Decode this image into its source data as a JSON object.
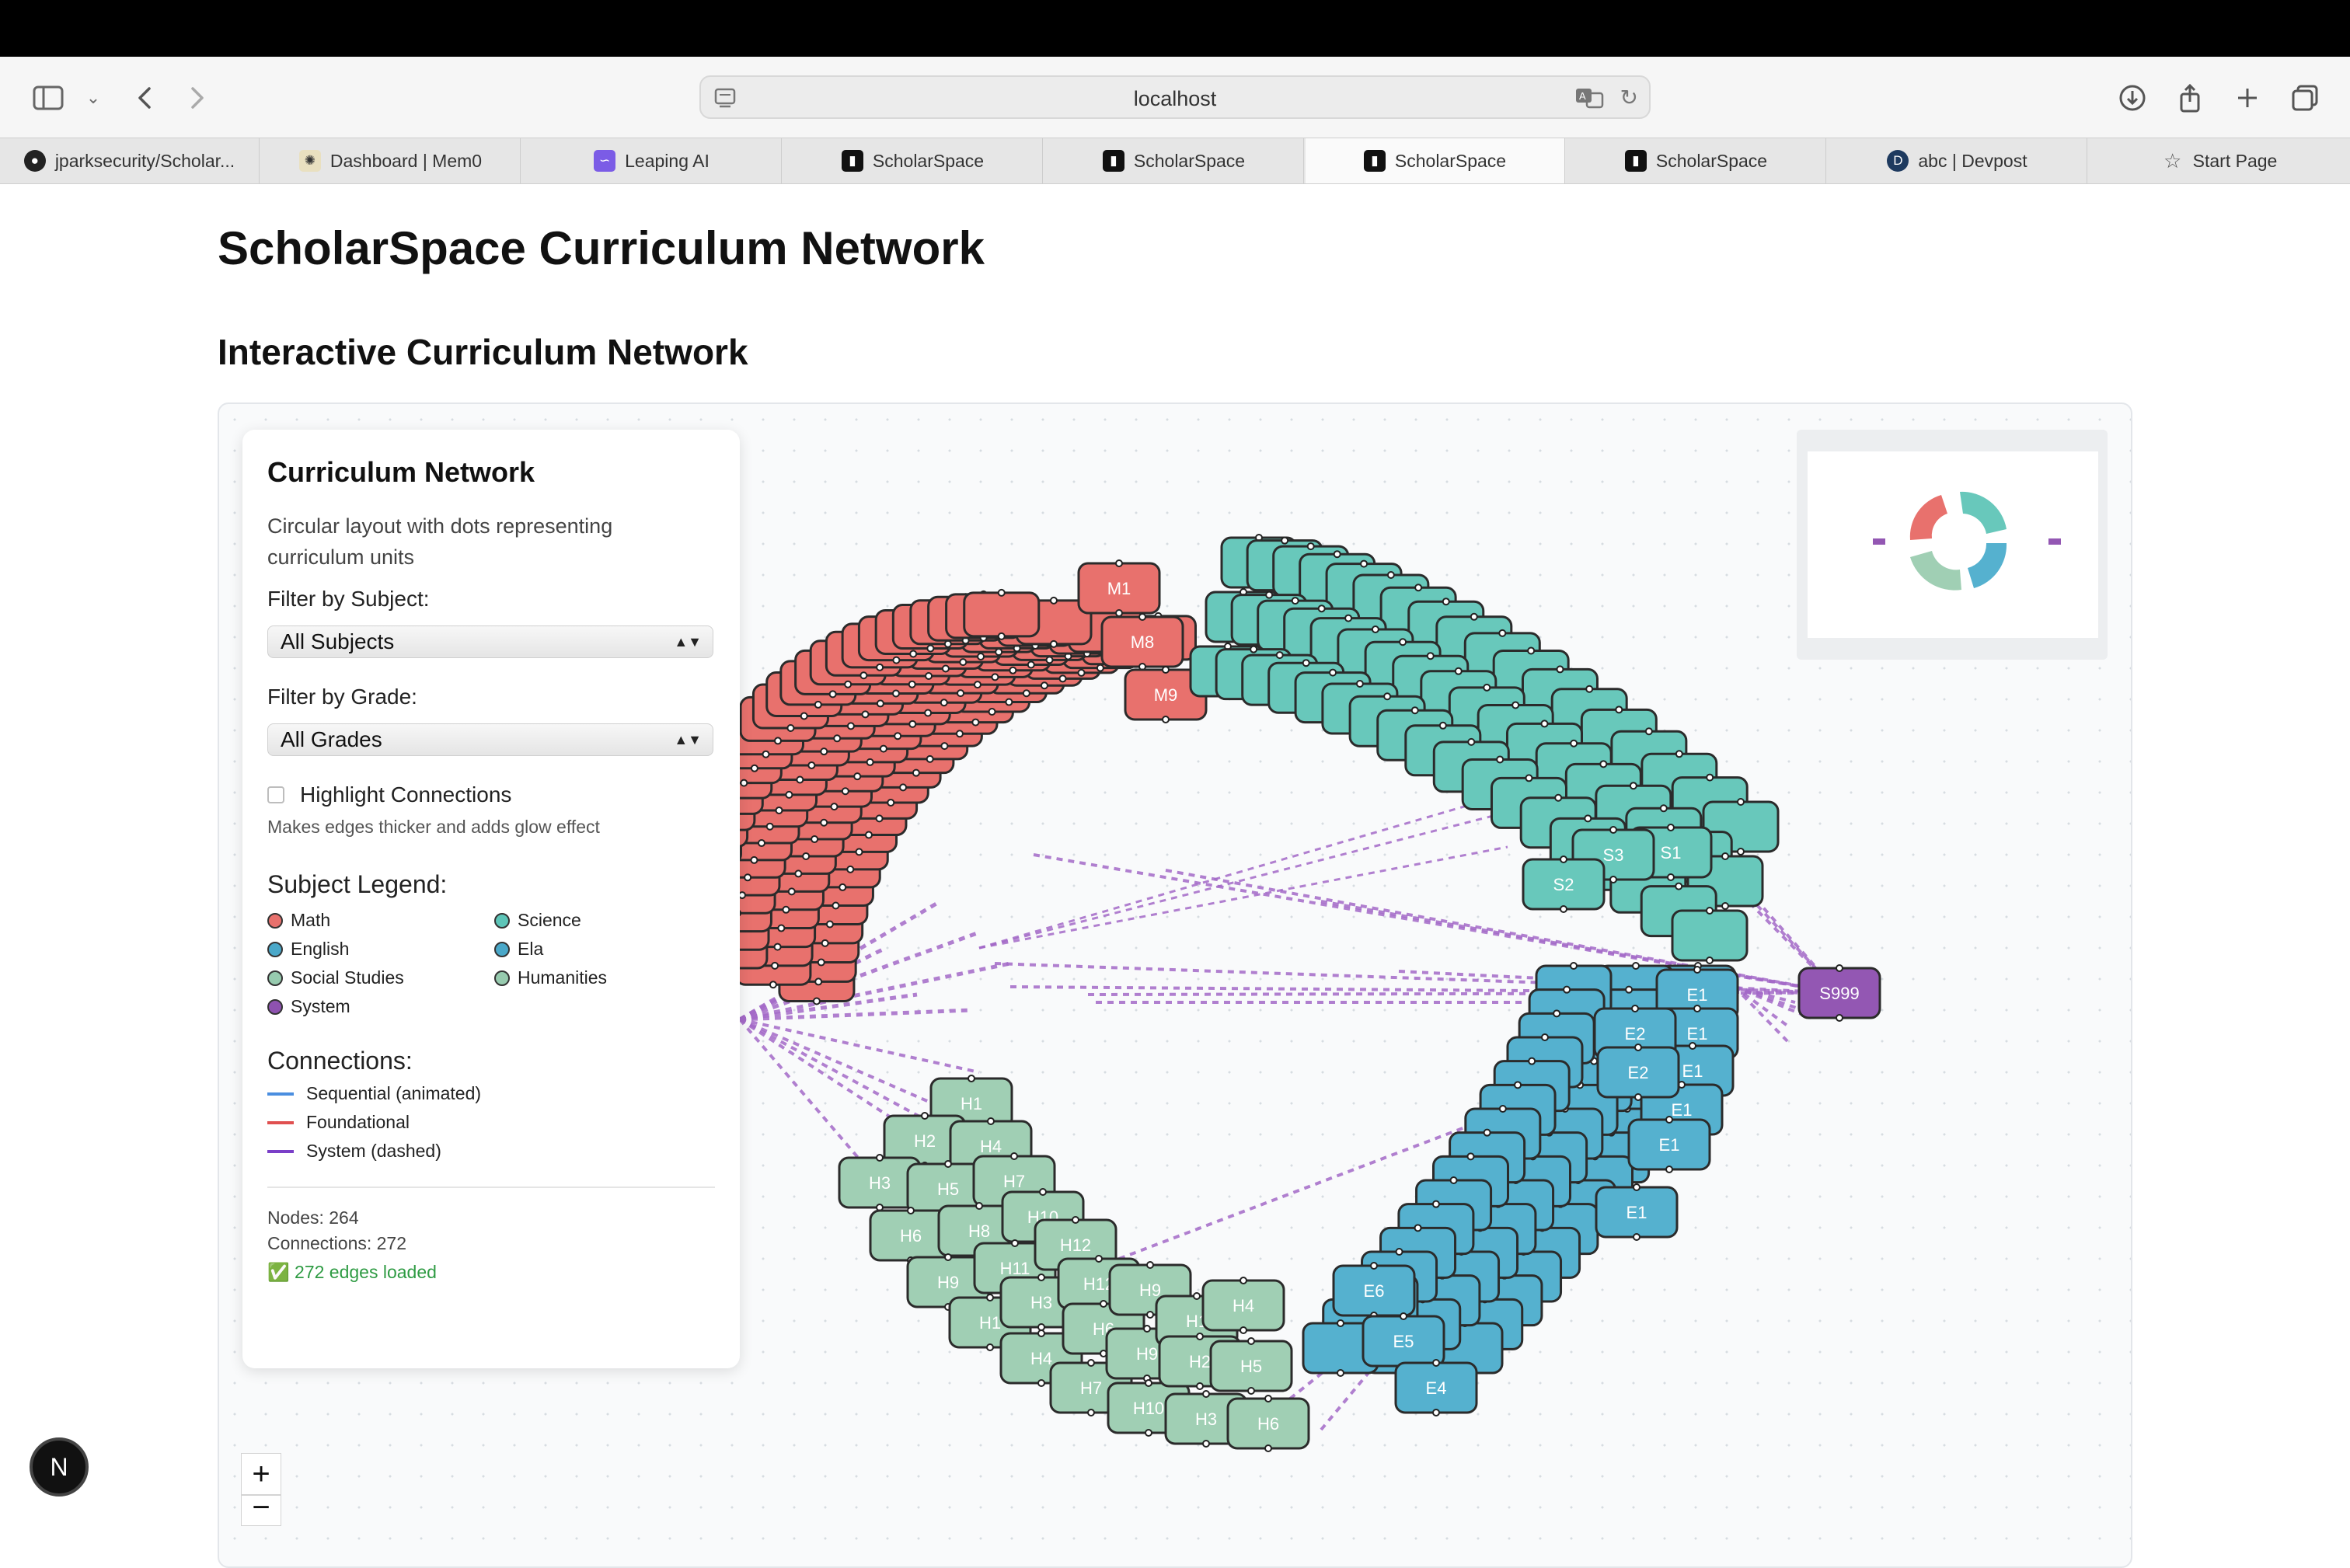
{
  "browser": {
    "url": "localhost",
    "tabs": [
      {
        "label": "jparksecurity/Scholar...",
        "icon": "github-icon"
      },
      {
        "label": "Dashboard | Mem0",
        "icon": "mem0-icon"
      },
      {
        "label": "Leaping AI",
        "icon": "leaping-icon"
      },
      {
        "label": "ScholarSpace",
        "icon": "scholarspace-icon"
      },
      {
        "label": "ScholarSpace",
        "icon": "scholarspace-icon"
      },
      {
        "label": "ScholarSpace",
        "icon": "scholarspace-icon"
      },
      {
        "label": "ScholarSpace",
        "icon": "scholarspace-icon"
      },
      {
        "label": "abc | Devpost",
        "icon": "devpost-icon"
      },
      {
        "label": "Start Page",
        "icon": "star-icon"
      }
    ],
    "active_tab": 5
  },
  "page": {
    "title": "ScholarSpace Curriculum Network",
    "subtitle": "Interactive Curriculum Network"
  },
  "panel": {
    "title": "Curriculum Network",
    "description": "Circular layout with dots representing curriculum units",
    "subject_filter_label": "Filter by Subject:",
    "subject_filter_value": "All Subjects",
    "grade_filter_label": "Filter by Grade:",
    "grade_filter_value": "All Grades",
    "highlight_label": "Highlight Connections",
    "highlight_hint": "Makes edges thicker and adds glow effect",
    "legend_title": "Subject Legend:",
    "legend": [
      {
        "label": "Math",
        "color": "#e8716d"
      },
      {
        "label": "Science",
        "color": "#5dc5b8"
      },
      {
        "label": "English",
        "color": "#4aa8c9"
      },
      {
        "label": "Ela",
        "color": "#4aa8c9"
      },
      {
        "label": "Social Studies",
        "color": "#97cbaf"
      },
      {
        "label": "Humanities",
        "color": "#97cbaf"
      },
      {
        "label": "System",
        "color": "#8e52b0"
      }
    ],
    "connections_title": "Connections:",
    "connections": [
      {
        "label": "Sequential (animated)",
        "color": "#4a8ee0"
      },
      {
        "label": "Foundational",
        "color": "#e05050"
      },
      {
        "label": "System (dashed)",
        "color": "#7a3fc8"
      }
    ],
    "nodes_stat": "Nodes: 264",
    "connections_stat": "Connections: 272",
    "edges_loaded": "✅ 272 edges loaded"
  },
  "graph": {
    "colors": {
      "math": "#e8716d",
      "science": "#68c8bb",
      "ela": "#55b1cf",
      "social": "#a0cfb4",
      "system": "#9357b3",
      "edge": "#a46ac8"
    },
    "math_labels": [
      "M1",
      "M8",
      "M9"
    ],
    "science_labels": [
      "S1",
      "S3",
      "S2"
    ],
    "ela_labels": [
      "E1",
      "E2",
      "E6",
      "E5",
      "E4"
    ],
    "social_labels": [
      "H1",
      "H2",
      "H4",
      "H3",
      "H5",
      "H7",
      "H6",
      "H8",
      "H10",
      "H9",
      "H11",
      "H12"
    ],
    "system_label": "S999"
  },
  "controls": {
    "zoom_in": "+",
    "zoom_out": "−",
    "badge": "N"
  }
}
